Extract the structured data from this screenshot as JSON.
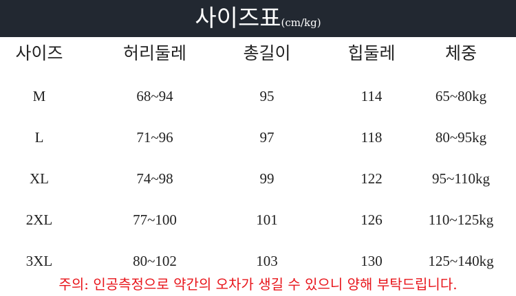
{
  "title": "사이즈표",
  "unit": "(cm/kg)",
  "headers": [
    "사이즈",
    "허리둘레",
    "총길이",
    "힙둘레",
    "체중"
  ],
  "rows": [
    [
      "M",
      "68~94",
      "95",
      "114",
      "65~80kg"
    ],
    [
      "L",
      "71~96",
      "97",
      "118",
      "80~95kg"
    ],
    [
      "XL",
      "74~98",
      "99",
      "122",
      "95~110kg"
    ],
    [
      "2XL",
      "77~100",
      "101",
      "126",
      "110~125kg"
    ],
    [
      "3XL",
      "80~102",
      "103",
      "130",
      "125~140kg"
    ]
  ],
  "note": "주의: 인공측정으로 약간의 오차가 생길 수 있으니 양해 부탁드립니다.",
  "colors": {
    "banner": "#222831",
    "note": "#e8141a"
  }
}
